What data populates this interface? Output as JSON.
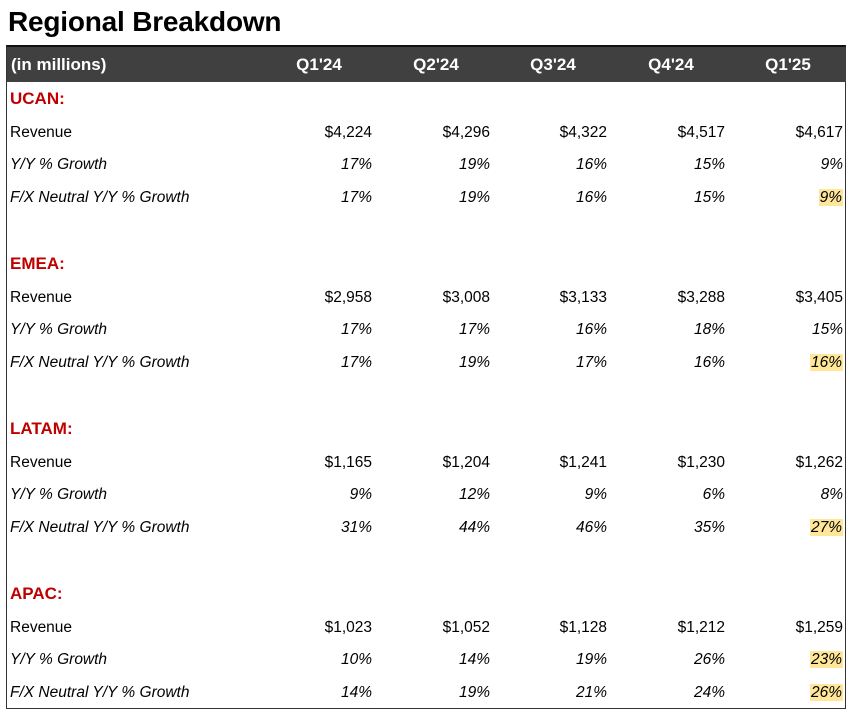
{
  "title": "Regional Breakdown",
  "header": {
    "label": "(in millions)",
    "quarters": [
      "Q1'24",
      "Q2'24",
      "Q3'24",
      "Q4'24",
      "Q1'25"
    ]
  },
  "highlight_color": "#ffe699",
  "region_color": "#c00000",
  "header_bg": "#404040",
  "regions": [
    {
      "name": "UCAN:",
      "rows": [
        {
          "label": "Revenue",
          "italic": false,
          "values": [
            "$4,224",
            "$4,296",
            "$4,322",
            "$4,517",
            "$4,617"
          ],
          "highlight_last": false
        },
        {
          "label": "Y/Y % Growth",
          "italic": true,
          "values": [
            "17%",
            "19%",
            "16%",
            "15%",
            "9%"
          ],
          "highlight_last": false
        },
        {
          "label": "F/X Neutral Y/Y % Growth",
          "italic": true,
          "values": [
            "17%",
            "19%",
            "16%",
            "15%",
            "9%"
          ],
          "highlight_last": true
        }
      ]
    },
    {
      "name": "EMEA:",
      "rows": [
        {
          "label": "Revenue",
          "italic": false,
          "values": [
            "$2,958",
            "$3,008",
            "$3,133",
            "$3,288",
            "$3,405"
          ],
          "highlight_last": false
        },
        {
          "label": "Y/Y % Growth",
          "italic": true,
          "values": [
            "17%",
            "17%",
            "16%",
            "18%",
            "15%"
          ],
          "highlight_last": false
        },
        {
          "label": "F/X Neutral Y/Y % Growth",
          "italic": true,
          "values": [
            "17%",
            "19%",
            "17%",
            "16%",
            "16%"
          ],
          "highlight_last": true
        }
      ]
    },
    {
      "name": "LATAM:",
      "rows": [
        {
          "label": "Revenue",
          "italic": false,
          "values": [
            "$1,165",
            "$1,204",
            "$1,241",
            "$1,230",
            "$1,262"
          ],
          "highlight_last": false
        },
        {
          "label": "Y/Y % Growth",
          "italic": true,
          "values": [
            "9%",
            "12%",
            "9%",
            "6%",
            "8%"
          ],
          "highlight_last": false
        },
        {
          "label": "F/X Neutral Y/Y % Growth",
          "italic": true,
          "values": [
            "31%",
            "44%",
            "46%",
            "35%",
            "27%"
          ],
          "highlight_last": true
        }
      ]
    },
    {
      "name": "APAC:",
      "rows": [
        {
          "label": "Revenue",
          "italic": false,
          "values": [
            "$1,023",
            "$1,052",
            "$1,128",
            "$1,212",
            "$1,259"
          ],
          "highlight_last": false
        },
        {
          "label": "Y/Y % Growth",
          "italic": true,
          "values": [
            "10%",
            "14%",
            "19%",
            "26%",
            "23%"
          ],
          "highlight_last": true
        },
        {
          "label": "F/X Neutral Y/Y % Growth",
          "italic": true,
          "values": [
            "14%",
            "19%",
            "21%",
            "24%",
            "26%"
          ],
          "highlight_last": true
        }
      ]
    }
  ]
}
